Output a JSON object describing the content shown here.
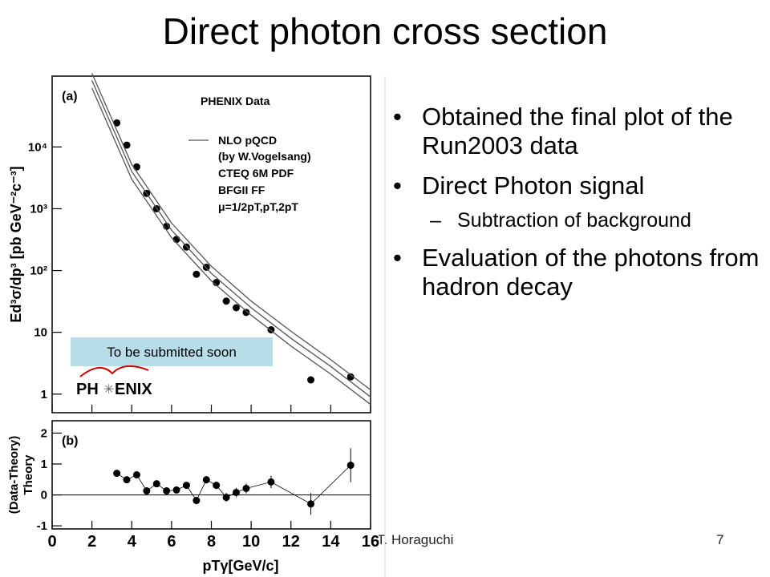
{
  "slide": {
    "title": "Direct photon cross section",
    "bullets": [
      {
        "text": "Obtained the final plot of the Run2003 data",
        "level": 1
      },
      {
        "text": "Direct Photon signal",
        "level": 1
      },
      {
        "text": "Subtraction of background",
        "level": 2
      },
      {
        "text": "Evaluation of the photons from hadron decay",
        "level": 1
      }
    ],
    "badge": "To be submitted soon",
    "logo_left": "PH",
    "logo_right": "ENIX",
    "footer": "T. Horaguchi",
    "page_number": "7"
  },
  "chart_data": [
    {
      "type": "scatter",
      "panel_label": "(a)",
      "title": "PHENIX Data",
      "y_label": "Ed³σ/dp³ [pb GeV⁻²c⁻³]",
      "log_y": true,
      "xlim": [
        0,
        16
      ],
      "xticks": [
        0,
        2,
        4,
        6,
        8,
        10,
        12,
        14,
        16
      ],
      "ylim": [
        0.5,
        140000
      ],
      "yticks": [
        1,
        10,
        {
          "value": 100,
          "label": "10²"
        },
        {
          "value": 1000,
          "label": "10³"
        },
        {
          "value": 10000,
          "label": "10⁴"
        }
      ],
      "legend_notes": [
        "(by W.Vogelsang)",
        "CTEQ 6M PDF",
        "BFGII FF",
        "μ=1/2pT,pT,2pT"
      ],
      "series": [
        {
          "mode": "markers",
          "color": "#000000",
          "x": [
            3.25,
            3.75,
            4.25,
            4.75,
            5.25,
            5.75,
            6.25,
            6.75,
            7.25,
            7.75,
            8.25,
            8.75,
            9.25,
            9.75,
            11,
            13,
            15
          ],
          "values": [
            24500,
            10700,
            4750,
            1770,
            1000,
            520,
            320,
            240,
            87,
            113,
            64,
            32,
            25,
            21,
            11,
            1.7,
            1.9
          ]
        },
        {
          "mode": "lines",
          "name": "NLO pQCD",
          "color": "#555555",
          "x": [
            2,
            4,
            6,
            8,
            10,
            12,
            14,
            16
          ],
          "values": [
            120000,
            4000,
            450,
            90,
            25,
            8,
            2.8,
            0.9
          ]
        },
        {
          "mode": "lines",
          "color": "#555555",
          "x": [
            2,
            4,
            6,
            8,
            10,
            12,
            14,
            16
          ],
          "values": [
            156000,
            5200,
            585,
            117,
            32,
            10.4,
            3.6,
            1.17
          ]
        },
        {
          "mode": "lines",
          "color": "#555555",
          "x": [
            2,
            4,
            6,
            8,
            10,
            12,
            14,
            16
          ],
          "values": [
            90000,
            3000,
            340,
            68,
            19,
            6,
            2.1,
            0.68
          ]
        }
      ]
    },
    {
      "type": "scatter",
      "panel_label": "(b)",
      "y_label": [
        "(Data-Theory)",
        "Theory"
      ],
      "x_label": "pTγ[GeV/c]",
      "xlim": [
        0,
        16
      ],
      "xticks": [
        0,
        2,
        4,
        6,
        8,
        10,
        12,
        14,
        16
      ],
      "ylim": [
        -1.1,
        2.4
      ],
      "yticks": [
        -1,
        0,
        1,
        2
      ],
      "series": [
        {
          "mode": "markers",
          "color": "#000000",
          "x": [
            3.25,
            3.75,
            4.25,
            4.75,
            5.25,
            5.75,
            6.25,
            6.75,
            7.25,
            7.75,
            8.25,
            8.75,
            9.25,
            9.75,
            11,
            13,
            15
          ],
          "values": [
            0.7,
            0.49,
            0.65,
            0.13,
            0.36,
            0.13,
            0.16,
            0.31,
            -0.18,
            0.49,
            0.31,
            -0.08,
            0.08,
            0.21,
            0.42,
            -0.29,
            0.96
          ],
          "errors": [
            0.1,
            0.08,
            0.08,
            0.08,
            0.08,
            0.08,
            0.08,
            0.1,
            0.12,
            0.12,
            0.12,
            0.14,
            0.15,
            0.16,
            0.2,
            0.35,
            0.55
          ]
        }
      ]
    }
  ]
}
